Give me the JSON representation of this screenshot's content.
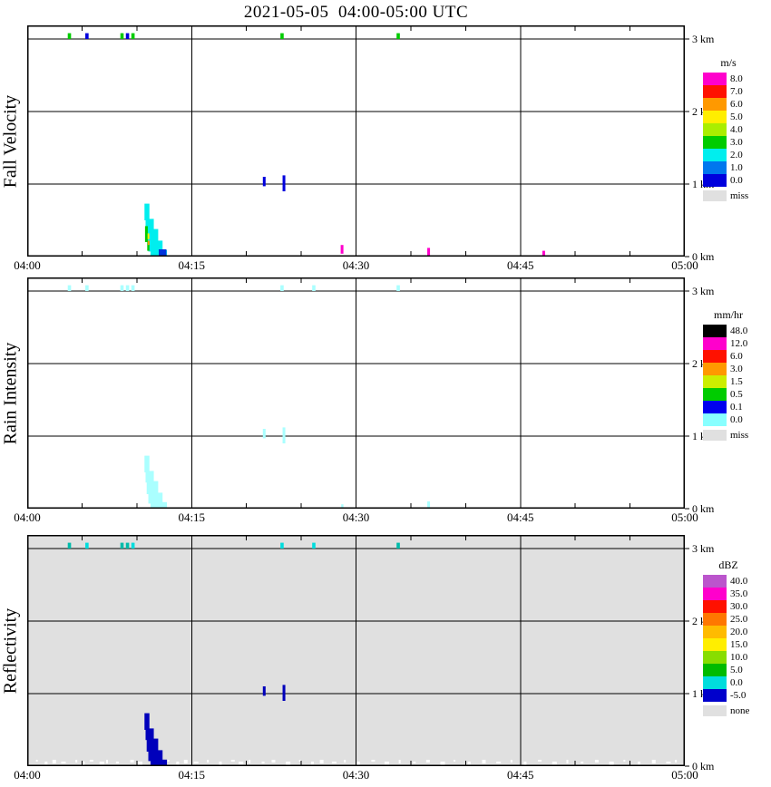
{
  "title": "2021-05-05  04:00-05:00 UTC",
  "chart_data": {
    "type": "heatmap",
    "description": "Micro rain radar time-height panels",
    "time_range_utc": [
      "04:00",
      "05:00"
    ],
    "x_ticks": [
      {
        "label": "04:00",
        "min": 0
      },
      {
        "label": "04:15",
        "min": 15
      },
      {
        "label": "04:30",
        "min": 30
      },
      {
        "label": "04:45",
        "min": 45
      },
      {
        "label": "05:00",
        "min": 60
      }
    ],
    "x_minor_tick_min": 5,
    "y_ticks": [
      {
        "label": "0 km",
        "km": 0
      },
      {
        "label": "1 km",
        "km": 1
      },
      {
        "label": "2 km",
        "km": 2
      },
      {
        "label": "3 km",
        "km": 3
      }
    ],
    "grid": {
      "h_km": [
        1,
        2,
        3
      ],
      "v_min": [
        15,
        30,
        45
      ]
    },
    "height_axis_max_km": 3.1875,
    "time_axis_max_min": 60,
    "panels": [
      {
        "id": "fall-velocity",
        "ylabel": "Fall Velocity",
        "unit": "m/s",
        "background": "#ffffff",
        "legend": [
          {
            "label": "8.0",
            "color": "#ff00cc"
          },
          {
            "label": "7.0",
            "color": "#ff1100"
          },
          {
            "label": "6.0",
            "color": "#ff9900"
          },
          {
            "label": "5.0",
            "color": "#ffee00"
          },
          {
            "label": "4.0",
            "color": "#aaee00"
          },
          {
            "label": "3.0",
            "color": "#00cc00"
          },
          {
            "label": "2.0",
            "color": "#00eeee"
          },
          {
            "label": "1.0",
            "color": "#0077ee"
          },
          {
            "label": "0.0",
            "color": "#0000dd"
          }
        ],
        "missing": {
          "label": "miss",
          "color": "#e0e0e0"
        },
        "cells": [
          {
            "t0": 3.7,
            "t1": 4.0,
            "h0": 3.0,
            "h1": 3.08,
            "c": "#00cc00",
            "v": "3"
          },
          {
            "t0": 5.3,
            "t1": 5.6,
            "h0": 3.0,
            "h1": 3.08,
            "c": "#0000dd",
            "v": "0"
          },
          {
            "t0": 8.5,
            "t1": 8.8,
            "h0": 3.0,
            "h1": 3.08,
            "c": "#00cc00",
            "v": "3"
          },
          {
            "t0": 9.0,
            "t1": 9.3,
            "h0": 3.0,
            "h1": 3.08,
            "c": "#0000dd",
            "v": "0"
          },
          {
            "t0": 9.5,
            "t1": 9.8,
            "h0": 3.0,
            "h1": 3.08,
            "c": "#00cc00",
            "v": "3"
          },
          {
            "t0": 23.1,
            "t1": 23.4,
            "h0": 3.0,
            "h1": 3.08,
            "c": "#00cc00",
            "v": "3"
          },
          {
            "t0": 33.7,
            "t1": 34.0,
            "h0": 3.0,
            "h1": 3.08,
            "c": "#00cc00",
            "v": "3"
          },
          {
            "t0": 21.5,
            "t1": 21.75,
            "h0": 0.97,
            "h1": 1.1,
            "c": "#0000dd",
            "v": "0.5"
          },
          {
            "t0": 23.3,
            "t1": 23.55,
            "h0": 0.9,
            "h1": 1.12,
            "c": "#0000dd",
            "v": "0.5"
          },
          {
            "t0": 10.7,
            "t1": 11.15,
            "h0": 0.5,
            "h1": 0.73,
            "c": "#00eeee",
            "v": "2"
          },
          {
            "t0": 10.8,
            "t1": 11.55,
            "h0": 0.36,
            "h1": 0.52,
            "c": "#00eeee",
            "v": "2"
          },
          {
            "t0": 10.9,
            "t1": 11.95,
            "h0": 0.2,
            "h1": 0.38,
            "c": "#00eeee",
            "v": "2"
          },
          {
            "t0": 11.05,
            "t1": 12.35,
            "h0": 0.07,
            "h1": 0.22,
            "c": "#00eeee",
            "v": "2"
          },
          {
            "t0": 11.25,
            "t1": 12.75,
            "h0": 0.0,
            "h1": 0.09,
            "c": "#00eeee",
            "v": "2"
          },
          {
            "t0": 10.75,
            "t1": 11.0,
            "h0": 0.2,
            "h1": 0.42,
            "c": "#00cc00",
            "v": "3"
          },
          {
            "t0": 10.95,
            "t1": 11.15,
            "h0": 0.08,
            "h1": 0.2,
            "c": "#00cc00",
            "v": "3"
          },
          {
            "t0": 10.98,
            "t1": 11.12,
            "h0": 0.24,
            "h1": 0.32,
            "c": "#ffee00",
            "v": "5"
          },
          {
            "t0": 11.0,
            "t1": 11.1,
            "h0": 0.16,
            "h1": 0.22,
            "c": "#ff9900",
            "v": "6"
          },
          {
            "t0": 12.0,
            "t1": 12.7,
            "h0": 0.0,
            "h1": 0.1,
            "c": "#0033dd",
            "v": "1"
          },
          {
            "t0": 28.6,
            "t1": 28.85,
            "h0": 0.04,
            "h1": 0.16,
            "c": "#ff00cc",
            "v": "8"
          },
          {
            "t0": 36.5,
            "t1": 36.75,
            "h0": 0.0,
            "h1": 0.12,
            "c": "#ff00cc",
            "v": "8"
          },
          {
            "t0": 47.0,
            "t1": 47.25,
            "h0": 0.0,
            "h1": 0.08,
            "c": "#ff00cc",
            "v": "8"
          }
        ]
      },
      {
        "id": "rain-intensity",
        "ylabel": "Rain Intensity",
        "unit": "mm/hr",
        "background": "#ffffff",
        "legend": [
          {
            "label": "48.0",
            "color": "#000000"
          },
          {
            "label": "12.0",
            "color": "#ff00cc"
          },
          {
            "label": "6.0",
            "color": "#ff1100"
          },
          {
            "label": "3.0",
            "color": "#ff9900"
          },
          {
            "label": "1.5",
            "color": "#ccee00"
          },
          {
            "label": "0.5",
            "color": "#00cc00"
          },
          {
            "label": "0.1",
            "color": "#0000ee"
          },
          {
            "label": "0.0",
            "color": "#88ffff"
          }
        ],
        "missing": {
          "label": "miss",
          "color": "#e0e0e0"
        },
        "cells": [
          {
            "t0": 3.7,
            "t1": 4.0,
            "h0": 3.0,
            "h1": 3.08,
            "c": "#aaffff",
            "v": "0.0"
          },
          {
            "t0": 5.3,
            "t1": 5.6,
            "h0": 3.0,
            "h1": 3.08,
            "c": "#aaffff",
            "v": "0.0"
          },
          {
            "t0": 8.5,
            "t1": 8.8,
            "h0": 3.0,
            "h1": 3.08,
            "c": "#aaffff",
            "v": "0.0"
          },
          {
            "t0": 9.0,
            "t1": 9.3,
            "h0": 3.0,
            "h1": 3.08,
            "c": "#aaffff",
            "v": "0.0"
          },
          {
            "t0": 9.5,
            "t1": 9.8,
            "h0": 3.0,
            "h1": 3.08,
            "c": "#aaffff",
            "v": "0.0"
          },
          {
            "t0": 23.1,
            "t1": 23.4,
            "h0": 3.0,
            "h1": 3.08,
            "c": "#aaffff",
            "v": "0.0"
          },
          {
            "t0": 26.0,
            "t1": 26.3,
            "h0": 3.0,
            "h1": 3.08,
            "c": "#aaffff",
            "v": "0.0"
          },
          {
            "t0": 33.7,
            "t1": 34.0,
            "h0": 3.0,
            "h1": 3.08,
            "c": "#aaffff",
            "v": "0.0"
          },
          {
            "t0": 21.5,
            "t1": 21.75,
            "h0": 0.97,
            "h1": 1.1,
            "c": "#aaffff",
            "v": "0.0"
          },
          {
            "t0": 23.3,
            "t1": 23.55,
            "h0": 0.9,
            "h1": 1.12,
            "c": "#aaffff",
            "v": "0.0"
          },
          {
            "t0": 10.7,
            "t1": 11.15,
            "h0": 0.5,
            "h1": 0.73,
            "c": "#aaffff",
            "v": "0.0"
          },
          {
            "t0": 10.8,
            "t1": 11.55,
            "h0": 0.36,
            "h1": 0.52,
            "c": "#aaffff",
            "v": "0.0"
          },
          {
            "t0": 10.9,
            "t1": 11.95,
            "h0": 0.2,
            "h1": 0.38,
            "c": "#aaffff",
            "v": "0.0"
          },
          {
            "t0": 11.05,
            "t1": 12.35,
            "h0": 0.07,
            "h1": 0.22,
            "c": "#aaffff",
            "v": "0.0"
          },
          {
            "t0": 11.25,
            "t1": 12.75,
            "h0": 0.0,
            "h1": 0.09,
            "c": "#aaffff",
            "v": "0.0"
          },
          {
            "t0": 28.65,
            "t1": 28.85,
            "h0": 0.0,
            "h1": 0.06,
            "c": "#aaffff",
            "v": "0.0"
          },
          {
            "t0": 36.5,
            "t1": 36.75,
            "h0": 0.0,
            "h1": 0.1,
            "c": "#aaffff",
            "v": "0.0"
          }
        ]
      },
      {
        "id": "reflectivity",
        "ylabel": "Reflectivity",
        "unit": "dBZ",
        "background": "#e0e0e0",
        "legend": [
          {
            "label": "40.0",
            "color": "#bb55cc"
          },
          {
            "label": "35.0",
            "color": "#ff00cc"
          },
          {
            "label": "30.0",
            "color": "#ff1100"
          },
          {
            "label": "25.0",
            "color": "#ff7700"
          },
          {
            "label": "20.0",
            "color": "#ffbb00"
          },
          {
            "label": "15.0",
            "color": "#ffee00"
          },
          {
            "label": "10.0",
            "color": "#88dd00"
          },
          {
            "label": "5.0",
            "color": "#00bb00"
          },
          {
            "label": "0.0",
            "color": "#00dddd"
          },
          {
            "label": "-5.0",
            "color": "#0000cc"
          }
        ],
        "missing": {
          "label": "none",
          "color": "#e0e0e0"
        },
        "cells": [
          {
            "t0": 3.7,
            "t1": 4.0,
            "h0": 3.0,
            "h1": 3.08,
            "c": "#00bbaa",
            "v": "2"
          },
          {
            "t0": 5.3,
            "t1": 5.6,
            "h0": 3.0,
            "h1": 3.08,
            "c": "#00dddd",
            "v": "0"
          },
          {
            "t0": 8.5,
            "t1": 8.8,
            "h0": 3.0,
            "h1": 3.08,
            "c": "#00bbaa",
            "v": "2"
          },
          {
            "t0": 9.0,
            "t1": 9.3,
            "h0": 3.0,
            "h1": 3.08,
            "c": "#00bbaa",
            "v": "2"
          },
          {
            "t0": 9.5,
            "t1": 9.8,
            "h0": 3.0,
            "h1": 3.08,
            "c": "#00dddd",
            "v": "0"
          },
          {
            "t0": 23.1,
            "t1": 23.4,
            "h0": 3.0,
            "h1": 3.08,
            "c": "#00dddd",
            "v": "0"
          },
          {
            "t0": 26.0,
            "t1": 26.3,
            "h0": 3.0,
            "h1": 3.08,
            "c": "#00dddd",
            "v": "0"
          },
          {
            "t0": 33.7,
            "t1": 34.0,
            "h0": 3.0,
            "h1": 3.08,
            "c": "#00bbaa",
            "v": "2"
          },
          {
            "t0": 21.5,
            "t1": 21.75,
            "h0": 0.97,
            "h1": 1.1,
            "c": "#0000bb",
            "v": "-5"
          },
          {
            "t0": 23.3,
            "t1": 23.55,
            "h0": 0.9,
            "h1": 1.12,
            "c": "#0000bb",
            "v": "-5"
          },
          {
            "t0": 10.7,
            "t1": 11.15,
            "h0": 0.5,
            "h1": 0.73,
            "c": "#0000bb",
            "v": "-5"
          },
          {
            "t0": 10.8,
            "t1": 11.55,
            "h0": 0.36,
            "h1": 0.52,
            "c": "#0000bb",
            "v": "-5"
          },
          {
            "t0": 10.9,
            "t1": 11.95,
            "h0": 0.2,
            "h1": 0.38,
            "c": "#0000bb",
            "v": "-5"
          },
          {
            "t0": 11.05,
            "t1": 12.35,
            "h0": 0.07,
            "h1": 0.22,
            "c": "#0000bb",
            "v": "-5"
          },
          {
            "t0": 11.25,
            "t1": 12.75,
            "h0": 0.0,
            "h1": 0.09,
            "c": "#0000bb",
            "v": "-5"
          }
        ],
        "noise_white_specks_t": [
          0.8,
          1.6,
          2.3,
          3.1,
          4.4,
          5.0,
          5.7,
          6.6,
          7.2,
          8.1,
          9.4,
          10.1,
          12.8,
          13.6,
          14.3,
          15.2,
          16.4,
          17.5,
          18.6,
          19.3,
          20.2,
          21.4,
          22.3,
          23.6,
          24.8,
          25.9,
          26.7,
          27.8,
          28.9,
          30.1,
          31.4,
          32.6,
          33.9,
          35.2,
          36.4,
          37.7,
          38.9,
          40.2,
          41.5,
          42.8,
          44.1,
          45.3,
          46.6,
          47.9,
          49.2,
          50.5,
          51.8,
          53.1,
          54.4,
          55.7,
          57.0,
          58.3,
          59.1
        ]
      }
    ]
  }
}
